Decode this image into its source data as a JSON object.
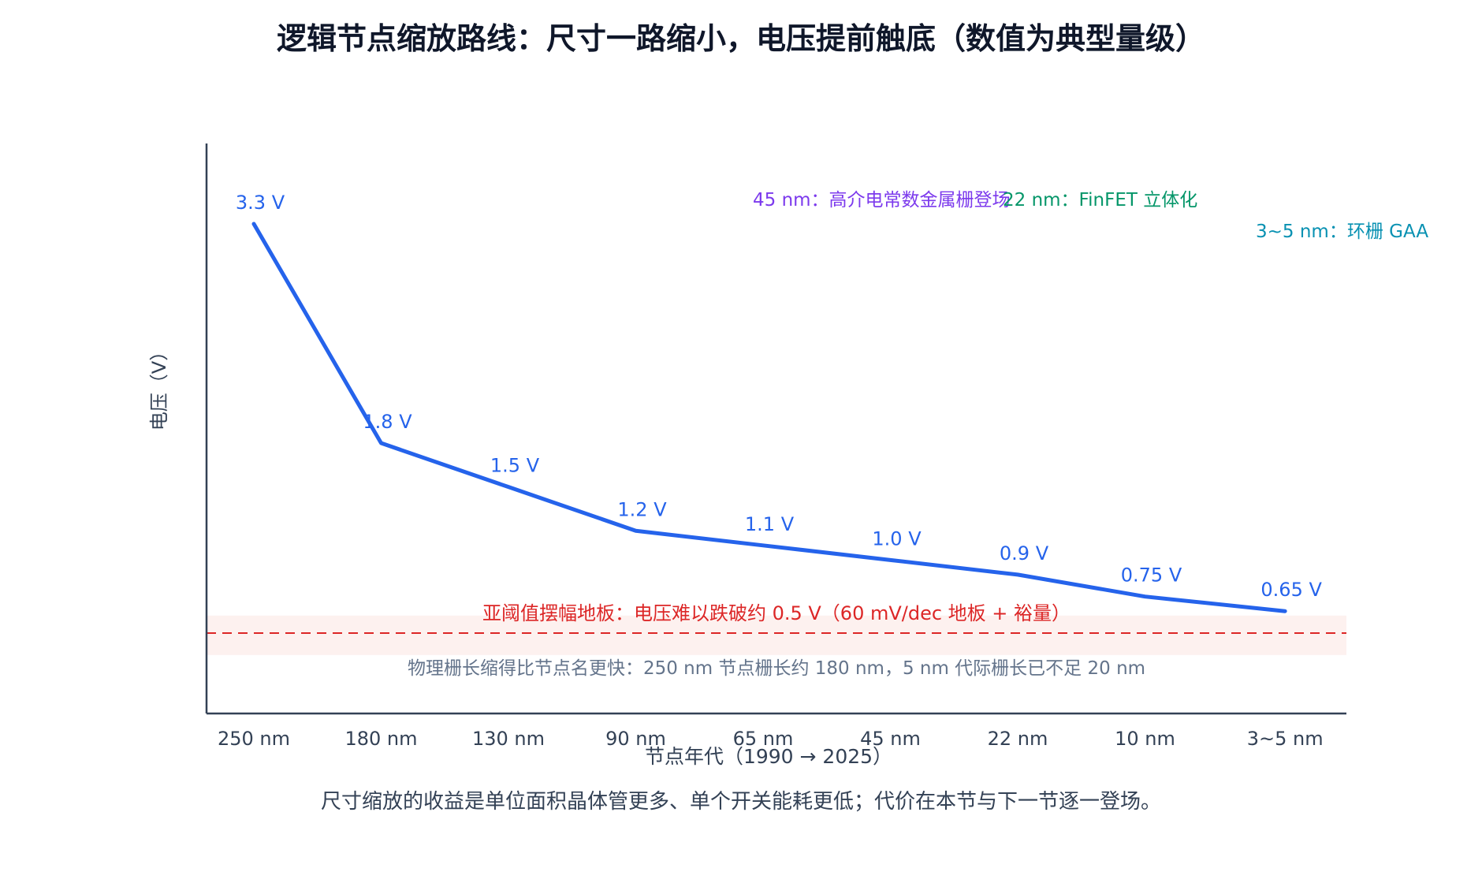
{
  "chart_data": {
    "type": "line",
    "title": "逻辑节点缩放路线：尺寸一路缩小，电压提前触底（数值为典型量级）",
    "xlabel": "节点年代（1990 → 2025）",
    "ylabel": "电压（V）",
    "categories": [
      "250 nm",
      "180 nm",
      "130 nm",
      "90 nm",
      "65 nm",
      "45 nm",
      "22 nm",
      "10 nm",
      "3~5 nm"
    ],
    "x": [
      0,
      1,
      2,
      3,
      4,
      5,
      6,
      7,
      8.1
    ],
    "series": [
      {
        "values": [
          3.3,
          1.8,
          1.5,
          1.2,
          1.1,
          1.0,
          0.9,
          0.75,
          0.65
        ],
        "labels": [
          "3.3 V",
          "1.8 V",
          "1.5 V",
          "1.2 V",
          "1.1 V",
          "1.0 V",
          "0.9 V",
          "0.75 V",
          "0.65 V"
        ],
        "color": "#2563eb"
      }
    ],
    "ylim": [
      -0.05,
      3.85
    ],
    "floor": {
      "value": 0.5,
      "band": [
        0.35,
        0.62
      ],
      "label": "亚阈值摆幅地板：电压难以跌破约 0.5 V（60 mV/dec 地板 + 裕量）",
      "line_color": "#dc2626",
      "band_color": "#fdf1ef"
    },
    "annotations": [
      {
        "text": "45 nm：高介电常数金属栅登场",
        "color": "#7c3aed"
      },
      {
        "text": "22 nm：FinFET 立体化",
        "color": "#059669"
      },
      {
        "text": "3~5 nm：环栅 GAA",
        "color": "#0891b2"
      }
    ],
    "note": "物理栅长缩得比节点名更快：250 nm 节点栅长约 180 nm，5 nm 代际栅长已不足 20 nm",
    "grid": false,
    "legend": "none"
  },
  "caption": "尺寸缩放的收益是单位面积晶体管更多、单个开关能耗更低；代价在本节与下一节逐一登场。",
  "colors": {
    "axis": "#334155",
    "tick": "#334155",
    "title": "#0f172a",
    "note": "#64748b",
    "caption": "#334155"
  }
}
